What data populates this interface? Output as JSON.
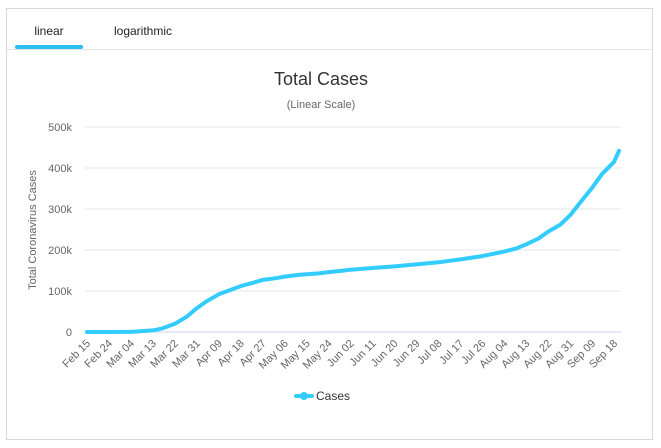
{
  "tabs": [
    {
      "label": "linear",
      "active": true
    },
    {
      "label": "logarithmic",
      "active": false
    }
  ],
  "colors": {
    "accent": "#29bdf0",
    "series": "#33ccff",
    "grid": "#e6e6e6"
  },
  "chart_data": {
    "type": "line",
    "title": "Total Cases",
    "subtitle": "(Linear Scale)",
    "ylabel": "Total Coronavirus Cases",
    "xlabel": "",
    "ylim": [
      0,
      500000
    ],
    "y_ticks": [
      "0",
      "100k",
      "200k",
      "300k",
      "400k",
      "500k"
    ],
    "x_ticks": [
      "Feb 15",
      "Feb 24",
      "Mar 04",
      "Mar 13",
      "Mar 22",
      "Mar 31",
      "Apr 09",
      "Apr 18",
      "Apr 27",
      "May 06",
      "May 15",
      "May 24",
      "Jun 02",
      "Jun 11",
      "Jun 20",
      "Jun 29",
      "Jul 08",
      "Jul 17",
      "Jul 26",
      "Aug 04",
      "Aug 13",
      "Aug 22",
      "Aug 31",
      "Sep 09",
      "Sep 18"
    ],
    "legend": {
      "position": "bottom-center",
      "entries": [
        "Cases"
      ]
    },
    "grid": true,
    "series": [
      {
        "name": "Cases",
        "x": [
          "Feb 15",
          "Feb 24",
          "Mar 04",
          "Mar 13",
          "Mar 17",
          "Mar 22",
          "Mar 27",
          "Mar 31",
          "Apr 04",
          "Apr 09",
          "Apr 14",
          "Apr 18",
          "Apr 23",
          "Apr 27",
          "May 02",
          "May 06",
          "May 11",
          "May 15",
          "May 20",
          "May 24",
          "May 29",
          "Jun 02",
          "Jun 11",
          "Jun 20",
          "Jun 29",
          "Jul 08",
          "Jul 17",
          "Jul 26",
          "Aug 04",
          "Aug 09",
          "Aug 13",
          "Aug 18",
          "Aug 22",
          "Aug 27",
          "Aug 31",
          "Sep 04",
          "Sep 09",
          "Sep 13",
          "Sep 18",
          "Sep 20"
        ],
        "values": [
          0,
          0,
          300,
          4000,
          9000,
          20000,
          38000,
          58000,
          75000,
          92000,
          103000,
          112000,
          120000,
          127000,
          131000,
          135000,
          139000,
          141000,
          143000,
          146000,
          149000,
          152000,
          156000,
          160000,
          165000,
          170000,
          177000,
          185000,
          196000,
          204000,
          214000,
          228000,
          245000,
          262000,
          285000,
          315000,
          352000,
          385000,
          415000,
          442000
        ]
      }
    ]
  }
}
